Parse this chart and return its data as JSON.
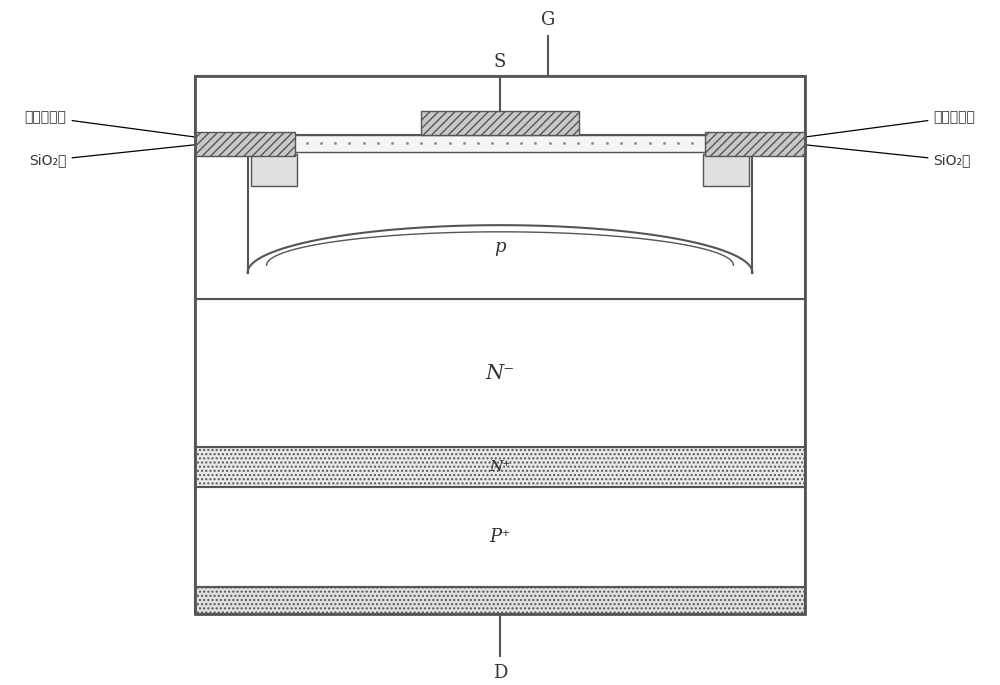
{
  "bg_color": "#ffffff",
  "lc": "#555555",
  "lc_dark": "#444444",
  "lw_main": 1.5,
  "lw_thin": 1.0,
  "labels": {
    "G": "G",
    "S": "S",
    "D": "D",
    "N_minus": "N⁻",
    "N_plus": "N⁺",
    "P_plus": "P⁺",
    "P": "p",
    "N_src": "N⁺",
    "dense_metal": "致密金属层",
    "sio2": "SiO₂层"
  },
  "figsize": [
    10.0,
    6.85
  ],
  "dpi": 100
}
